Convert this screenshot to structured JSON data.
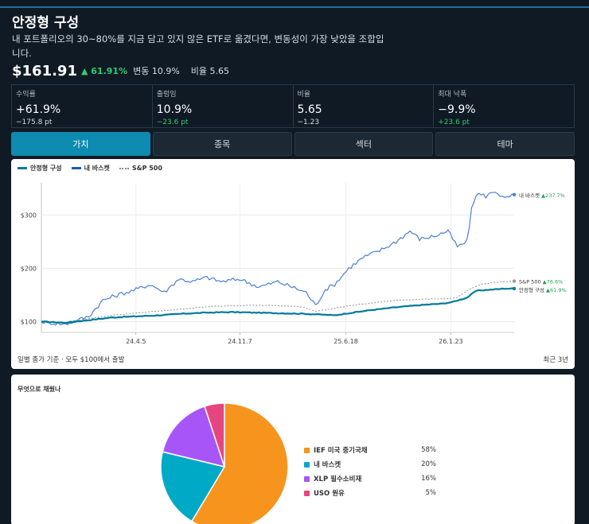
{
  "header": {
    "title": "안정형 구성",
    "subtitle": "내 포트폴리오의 30~80%를 지금 담고 있지 않은 ETF로 옮겼다면, 변동성이 가장 낮았을 조합입니다.",
    "price": "$161.91",
    "change": "▲ 61.91%",
    "volatility": "변동 10.9%",
    "ratio": "비율 5.65"
  },
  "stats": [
    {
      "label": "수익률",
      "value": "+61.9%",
      "sub": "−175.8 pt",
      "sub_color": "#d7dee5"
    },
    {
      "label": "출렁임",
      "value": "10.9%",
      "sub": "−23.6 pt",
      "sub_color": "#2ecc71"
    },
    {
      "label": "비율",
      "value": "5.65",
      "sub": "−1.23",
      "sub_color": "#d7dee5"
    },
    {
      "label": "최대 낙폭",
      "value": "−9.9%",
      "sub": "+23.6 pt",
      "sub_color": "#2ecc71"
    }
  ],
  "tabs": [
    {
      "label": "가치",
      "active": true
    },
    {
      "label": "종목",
      "active": false
    },
    {
      "label": "섹터",
      "active": false
    },
    {
      "label": "테마",
      "active": false
    }
  ],
  "chart_data": {
    "type": "line",
    "title": "",
    "xlabel": "",
    "ylabel": "",
    "legend_position": "top-left",
    "x_ticks": [
      "24.4.5",
      "24.11.7",
      "25.6.18",
      "26.1.23"
    ],
    "x_tick_positions": [
      0.2,
      0.42,
      0.644,
      0.866
    ],
    "y_ticks": [
      "$100",
      "$200",
      "$300"
    ],
    "y_tick_values": [
      100,
      200,
      300
    ],
    "ylim": [
      80,
      360
    ],
    "grid": true,
    "series": [
      {
        "name": "안정형 구성",
        "color": "#007a99",
        "style": "solid",
        "width": 2.2,
        "end_label": "안정형 구성 ▲61.9%",
        "x": [
          0,
          0.05,
          0.1,
          0.15,
          0.2,
          0.25,
          0.3,
          0.35,
          0.4,
          0.45,
          0.5,
          0.55,
          0.6,
          0.62,
          0.65,
          0.7,
          0.75,
          0.8,
          0.85,
          0.87,
          0.9,
          0.92,
          0.95,
          0.98,
          1.0
        ],
        "y": [
          100,
          98,
          103,
          108,
          110,
          112,
          115,
          117,
          118,
          117,
          116,
          115,
          113,
          112,
          116,
          122,
          127,
          131,
          134,
          137,
          145,
          158,
          160,
          162,
          162
        ]
      },
      {
        "name": "내 바스켓",
        "color": "#4a7fd0",
        "style": "solid",
        "width": 1.2,
        "end_label": "내 바스켓 ▲237.7%",
        "x": [
          0,
          0.05,
          0.1,
          0.13,
          0.16,
          0.2,
          0.23,
          0.26,
          0.29,
          0.32,
          0.35,
          0.38,
          0.42,
          0.46,
          0.5,
          0.53,
          0.56,
          0.58,
          0.6,
          0.62,
          0.65,
          0.68,
          0.72,
          0.75,
          0.78,
          0.8,
          0.83,
          0.86,
          0.88,
          0.9,
          0.91,
          0.92,
          0.94,
          0.96,
          0.98,
          1.0
        ],
        "y": [
          100,
          95,
          110,
          140,
          150,
          160,
          170,
          155,
          180,
          175,
          183,
          175,
          180,
          165,
          175,
          165,
          155,
          130,
          160,
          170,
          200,
          220,
          235,
          250,
          270,
          255,
          260,
          270,
          240,
          250,
          310,
          340,
          335,
          345,
          330,
          338
        ]
      },
      {
        "name": "S&P 500",
        "color": "#999999",
        "style": "dotted",
        "width": 1.1,
        "end_label": "S&P 500 ▲76.6%",
        "x": [
          0,
          0.05,
          0.1,
          0.15,
          0.2,
          0.25,
          0.3,
          0.35,
          0.4,
          0.45,
          0.5,
          0.55,
          0.58,
          0.6,
          0.62,
          0.65,
          0.7,
          0.75,
          0.8,
          0.85,
          0.88,
          0.9,
          0.93,
          0.96,
          1.0
        ],
        "y": [
          100,
          99,
          106,
          112,
          116,
          120,
          124,
          128,
          130,
          131,
          130,
          128,
          120,
          122,
          125,
          130,
          135,
          140,
          142,
          143,
          145,
          158,
          170,
          174,
          176
        ]
      }
    ]
  },
  "chart_notes": {
    "left": "일별 종가 기준 · 모두 $100에서 출발",
    "right": "최근 3년"
  },
  "allocation": {
    "title": "무엇으로 채웠나",
    "items": [
      {
        "name": "IEF 미국 중기국채",
        "pct": "58%",
        "value": 58,
        "color": "#f7941d"
      },
      {
        "name": "내 바스켓",
        "pct": "20%",
        "value": 20,
        "color": "#00a9c5"
      },
      {
        "name": "XLP 필수소비재",
        "pct": "16%",
        "value": 16,
        "color": "#a855f7"
      },
      {
        "name": "USO 원유",
        "pct": "5%",
        "value": 5,
        "color": "#e6467f"
      }
    ]
  }
}
